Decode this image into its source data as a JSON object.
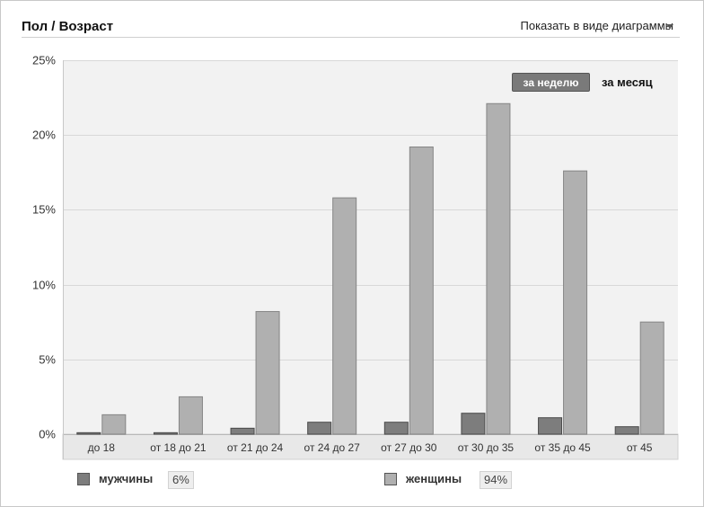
{
  "header": {
    "title": "Пол / Возраст",
    "view_toggle_label": "Показать в виде диаграммы"
  },
  "period": {
    "week_label": "за неделю",
    "month_label": "за месяц",
    "selected": "week"
  },
  "legend": {
    "male_label": "мужчины",
    "male_percent": "6%",
    "female_label": "женщины",
    "female_percent": "94%"
  },
  "colors": {
    "male": "#7d7d7d",
    "female": "#b0b0b0",
    "plot_background": "#f2f2f2",
    "grid": "#d8d8d8",
    "category_band": "#e8e8e8"
  },
  "chart_data": {
    "type": "bar",
    "title": "Пол / Возраст",
    "categories": [
      "до 18",
      "от 18 до 21",
      "от 21 до 24",
      "от 24 до 27",
      "от 27 до 30",
      "от 30 до 35",
      "от 35 до 45",
      "от 45"
    ],
    "series": [
      {
        "name": "мужчины",
        "values": [
          0.1,
          0.1,
          0.4,
          0.8,
          0.8,
          1.4,
          1.1,
          0.5
        ]
      },
      {
        "name": "женщины",
        "values": [
          1.3,
          2.5,
          8.2,
          15.8,
          19.2,
          22.1,
          17.6,
          7.5
        ]
      }
    ],
    "yticks": [
      "0%",
      "5%",
      "10%",
      "15%",
      "20%",
      "25%"
    ],
    "ylim": [
      0,
      25
    ],
    "grid": true,
    "legend_position": "bottom"
  }
}
